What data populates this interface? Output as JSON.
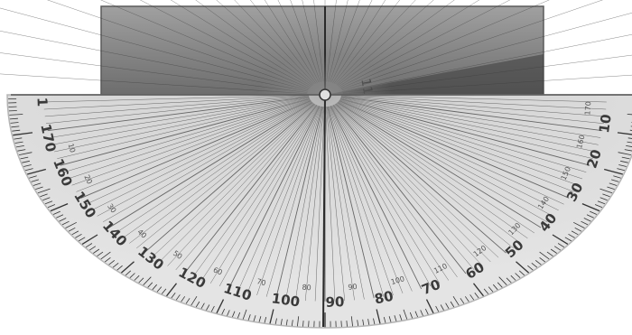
{
  "image": {
    "subject": "semicircular protractor",
    "colors": {
      "background": "#ffffff",
      "body": "#d9d9d9",
      "body_edge": "#bdbdbd",
      "ruler": "#8e8e8e",
      "ruler_dark": "#5a5a5a",
      "lines": "#4a4a4a",
      "labels": "#3a3a3a"
    },
    "outer_scale": {
      "labels": [
        "10",
        "20",
        "30",
        "40",
        "50",
        "60",
        "70",
        "80",
        "90",
        "100",
        "110",
        "120",
        "130",
        "140",
        "150",
        "160",
        "170",
        "1"
      ]
    },
    "inner_scale": {
      "labels": [
        "170",
        "160",
        "150",
        "140",
        "130",
        "120",
        "110",
        "100",
        "90",
        "80",
        "70",
        "60",
        "50",
        "40",
        "30",
        "20",
        "10"
      ]
    },
    "ruler_marking": "11"
  }
}
